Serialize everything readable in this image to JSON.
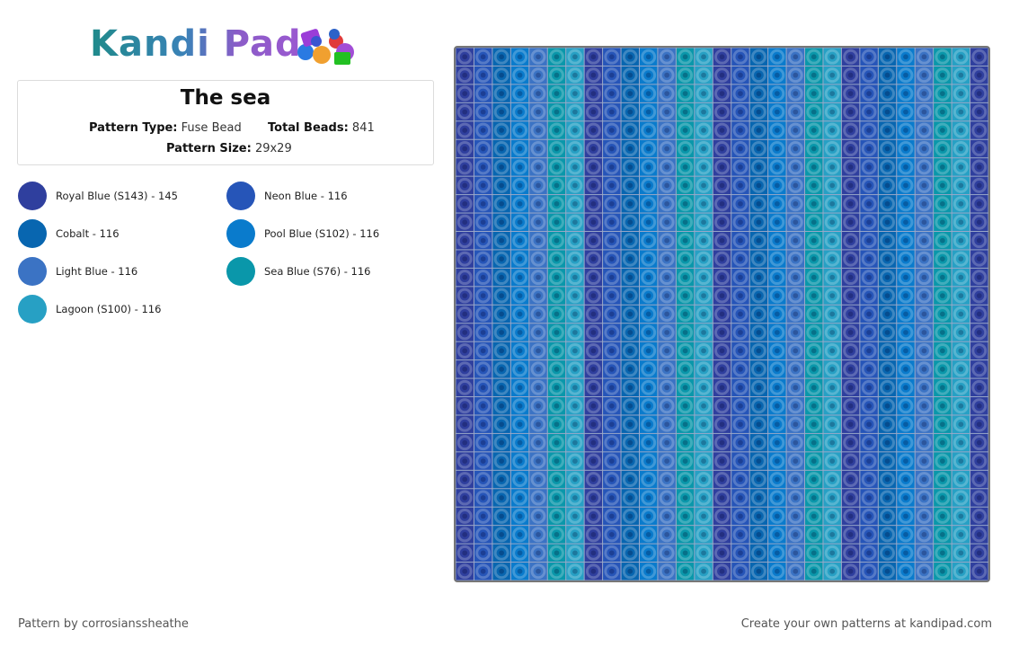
{
  "logo": {
    "text": "Kandi Pad"
  },
  "pattern": {
    "title": "The sea",
    "type_label": "Pattern Type:",
    "type_value": "Fuse Bead",
    "total_label": "Total Beads:",
    "total_value": "841",
    "size_label": "Pattern Size:",
    "size_value": "29x29",
    "columns": 29,
    "rows": 29
  },
  "colors": [
    {
      "label": "Royal Blue (S143) - 145",
      "hex": "#2f3f9e"
    },
    {
      "label": "Neon Blue - 116",
      "hex": "#2655b8"
    },
    {
      "label": "Cobalt - 116",
      "hex": "#0866b0"
    },
    {
      "label": "Pool Blue (S102) - 116",
      "hex": "#0a7bcc"
    },
    {
      "label": "Light Blue - 116",
      "hex": "#3b73c4"
    },
    {
      "label": "Sea Blue (S76) - 116",
      "hex": "#0a97aa"
    },
    {
      "label": "Lagoon (S100) - 116",
      "hex": "#27a0c4"
    }
  ],
  "column_sequence": [
    0,
    1,
    2,
    3,
    4,
    5,
    6,
    0,
    1,
    2,
    3,
    4,
    5,
    6,
    0,
    1,
    2,
    3,
    4,
    5,
    6,
    0,
    1,
    2,
    3,
    4,
    5,
    6,
    0
  ],
  "footer": {
    "credit": "Pattern by corrosianssheathe",
    "promo": "Create your own patterns at kandipad.com"
  }
}
